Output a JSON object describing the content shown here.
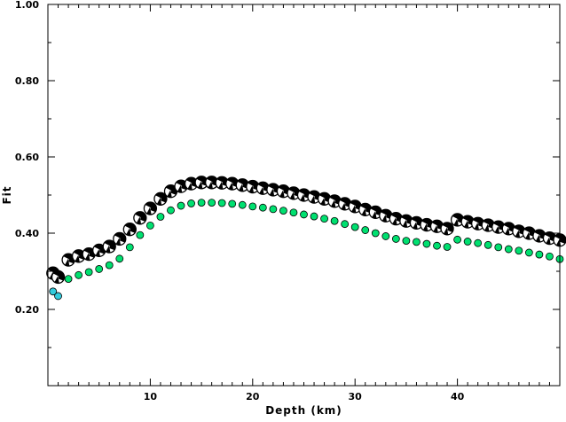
{
  "chart_data": {
    "type": "scatter",
    "title": "",
    "xlabel": "Depth (km)",
    "ylabel": "Fit",
    "xlim": [
      0,
      50
    ],
    "ylim": [
      0,
      1.0
    ],
    "xticks": [
      10,
      20,
      30,
      40
    ],
    "xtick_labels": [
      "10",
      "20",
      "30",
      "40"
    ],
    "yticks": [
      0.2,
      0.4,
      0.6,
      0.8,
      1.0
    ],
    "ytick_labels": [
      "0.20",
      "0.40",
      "0.60",
      "0.80",
      "1.00"
    ],
    "grid": false,
    "legend": "none",
    "colors": {
      "mechanism_fill": "#000000",
      "mechanism_outline": "#000000",
      "green_marker": "#00e070",
      "cyan_marker": "#33ccdd",
      "frame": "#000000"
    },
    "series": [
      {
        "marker": "beachball",
        "x": [
          0.5,
          1,
          2,
          3,
          4,
          5,
          6,
          7,
          8,
          9,
          10,
          11,
          12,
          13,
          14,
          15,
          16,
          17,
          18,
          19,
          20,
          21,
          22,
          23,
          24,
          25,
          26,
          27,
          28,
          29,
          30,
          31,
          32,
          33,
          34,
          35,
          36,
          37,
          38,
          39,
          40,
          41,
          42,
          43,
          44,
          45,
          46,
          47,
          48,
          49,
          50
        ],
        "y": [
          0.295,
          0.285,
          0.33,
          0.34,
          0.345,
          0.355,
          0.365,
          0.385,
          0.41,
          0.44,
          0.465,
          0.49,
          0.51,
          0.523,
          0.53,
          0.533,
          0.533,
          0.532,
          0.53,
          0.526,
          0.522,
          0.518,
          0.514,
          0.51,
          0.505,
          0.5,
          0.495,
          0.49,
          0.484,
          0.477,
          0.47,
          0.462,
          0.455,
          0.446,
          0.438,
          0.432,
          0.427,
          0.422,
          0.418,
          0.412,
          0.435,
          0.43,
          0.425,
          0.421,
          0.416,
          0.412,
          0.405,
          0.4,
          0.393,
          0.387,
          0.382
        ]
      },
      {
        "marker": "circle-green",
        "x": [
          2,
          3,
          4,
          5,
          6,
          7,
          8,
          9,
          10,
          11,
          12,
          13,
          14,
          15,
          16,
          17,
          18,
          19,
          20,
          21,
          22,
          23,
          24,
          25,
          26,
          27,
          28,
          29,
          30,
          31,
          32,
          33,
          34,
          35,
          36,
          37,
          38,
          39,
          40,
          41,
          42,
          43,
          44,
          45,
          46,
          47,
          48,
          49,
          50
        ],
        "y": [
          0.28,
          0.29,
          0.298,
          0.306,
          0.316,
          0.333,
          0.363,
          0.395,
          0.42,
          0.443,
          0.46,
          0.472,
          0.478,
          0.48,
          0.48,
          0.479,
          0.477,
          0.474,
          0.47,
          0.467,
          0.463,
          0.459,
          0.454,
          0.449,
          0.444,
          0.438,
          0.432,
          0.424,
          0.416,
          0.408,
          0.4,
          0.392,
          0.385,
          0.38,
          0.377,
          0.372,
          0.367,
          0.364,
          0.383,
          0.378,
          0.374,
          0.369,
          0.363,
          0.358,
          0.354,
          0.349,
          0.344,
          0.339,
          0.332
        ]
      },
      {
        "marker": "circle-cyan",
        "x": [
          0.5,
          1
        ],
        "y": [
          0.247,
          0.235
        ]
      }
    ]
  }
}
